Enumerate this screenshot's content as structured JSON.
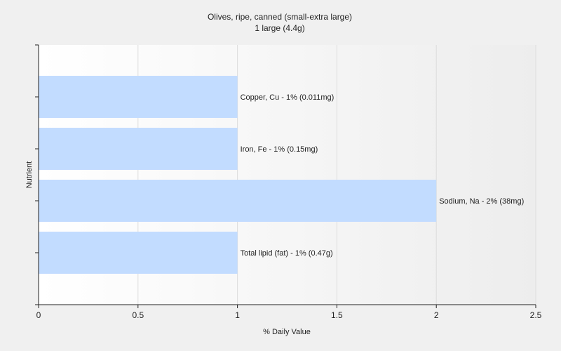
{
  "chart_data": {
    "type": "bar",
    "orientation": "horizontal",
    "title": "Olives, ripe, canned (small-extra large)",
    "subtitle": "1 large (4.4g)",
    "xlabel": "% Daily Value",
    "ylabel": "Nutrient",
    "xlim": [
      0,
      2.5
    ],
    "xticks": [
      "0",
      "0.5",
      "1",
      "1.5",
      "2",
      "2.5"
    ],
    "grid": true,
    "legend": "none",
    "bar_color": "#c2dcff",
    "categories": [
      "Copper, Cu",
      "Iron, Fe",
      "Sodium, Na",
      "Total lipid (fat)"
    ],
    "values": [
      1,
      1,
      2,
      1
    ],
    "data_labels": [
      "Copper, Cu - 1% (0.011mg)",
      "Iron, Fe - 1% (0.15mg)",
      "Sodium, Na - 2% (38mg)",
      "Total lipid (fat) - 1% (0.47g)"
    ]
  }
}
